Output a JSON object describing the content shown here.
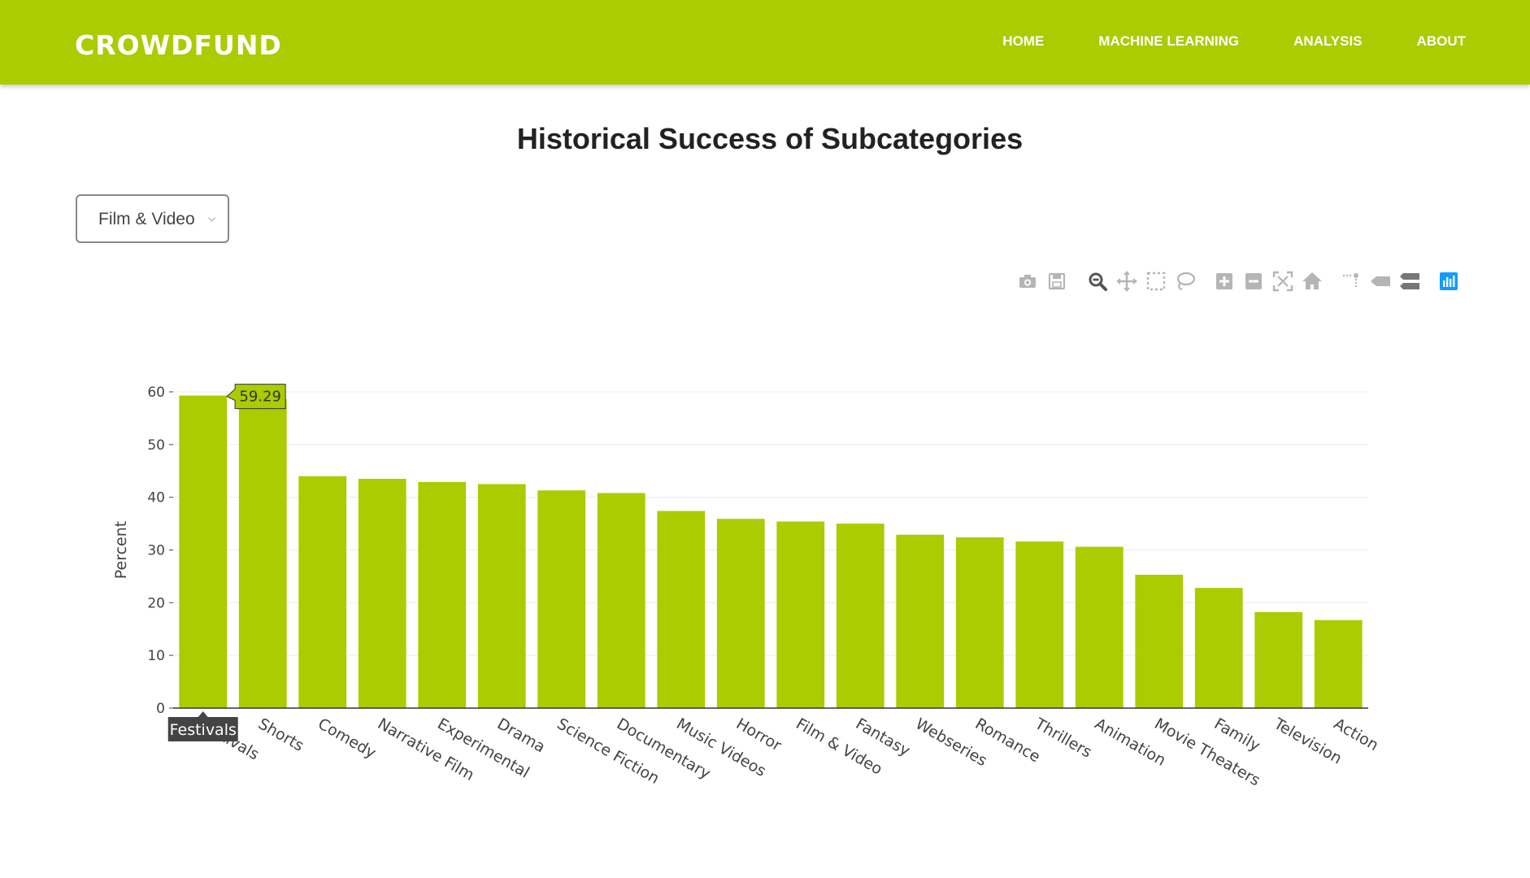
{
  "navbar": {
    "brand": "CROWDFUND",
    "links": [
      "HOME",
      "MACHINE LEARNING",
      "ANALYSIS",
      "ABOUT"
    ]
  },
  "page": {
    "title": "Historical Success of Subcategories"
  },
  "category_select": {
    "value": "Film & Video"
  },
  "modebar": {
    "icons": [
      "camera-icon",
      "save-icon",
      "zoom-icon",
      "pan-icon",
      "box-select-icon",
      "lasso-icon",
      "zoom-in-icon",
      "zoom-out-icon",
      "autoscale-icon",
      "reset-axes-icon",
      "spike-lines-icon",
      "hover-closest-icon",
      "hover-compare-icon",
      "plotly-logo-icon"
    ],
    "active_color": "#1f77b4"
  },
  "chart_data": {
    "type": "bar",
    "categories": [
      "Festivals",
      "Shorts",
      "Comedy",
      "Narrative Film",
      "Experimental",
      "Drama",
      "Science Fiction",
      "Documentary",
      "Music Videos",
      "Horror",
      "Film & Video",
      "Fantasy",
      "Webseries",
      "Romance",
      "Thrillers",
      "Animation",
      "Movie Theaters",
      "Family",
      "Television",
      "Action"
    ],
    "values": [
      59.29,
      58.6,
      44.0,
      43.5,
      42.9,
      42.5,
      41.3,
      40.8,
      37.4,
      35.9,
      35.4,
      35.0,
      32.9,
      32.4,
      31.6,
      30.6,
      25.3,
      22.8,
      18.2,
      16.7
    ],
    "title": "",
    "xlabel": "",
    "ylabel": "Percent",
    "ylim": [
      0,
      60
    ],
    "yticks": [
      0,
      10,
      20,
      30,
      40,
      50,
      60
    ],
    "bar_color": "#aacc00",
    "grid": true,
    "hover": {
      "category": "Festivals",
      "value_label": "59.29"
    }
  }
}
